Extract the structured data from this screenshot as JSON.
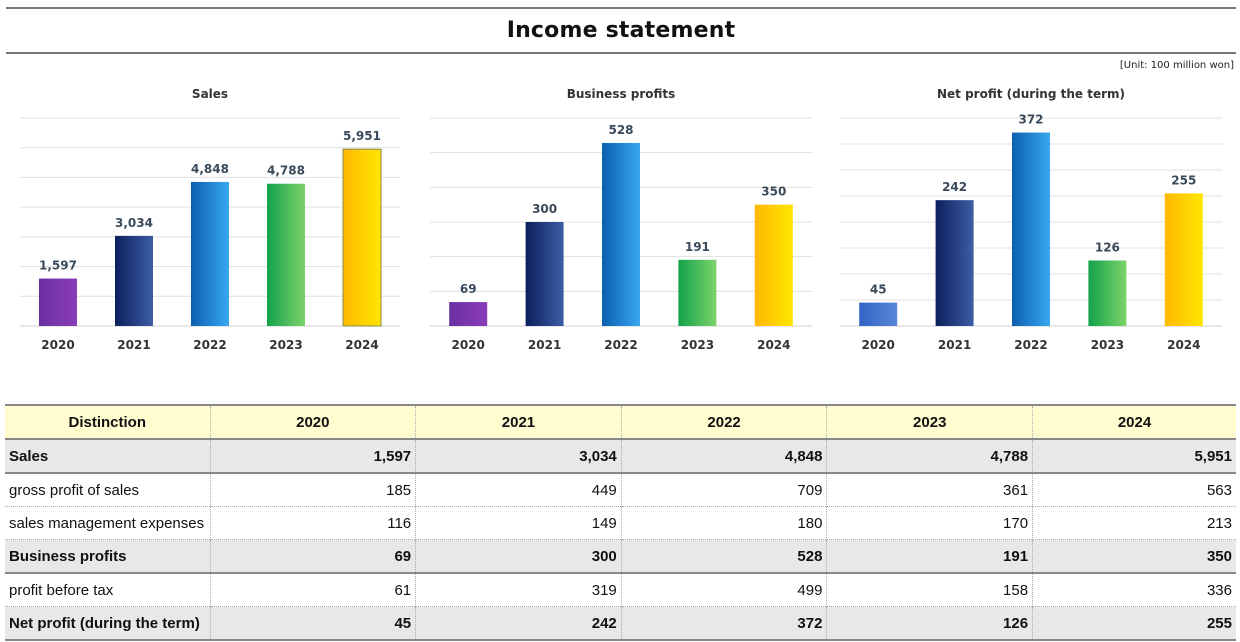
{
  "page": {
    "title": "Income statement",
    "unit": "[Unit: 100 million won]"
  },
  "colors": {
    "2020": [
      "#6b2fa3",
      "#8a3db8"
    ],
    "2020_alt": [
      "#2f63c6",
      "#5a86d6"
    ],
    "2021": [
      "#0c1f5c",
      "#3d5ea6"
    ],
    "2022": [
      "#0b5fb0",
      "#38a8f0"
    ],
    "2023": [
      "#12a24b",
      "#7dd36a"
    ],
    "2024": [
      "#ffb800",
      "#ffe600"
    ]
  },
  "chart_data": [
    {
      "type": "bar",
      "title": "Sales",
      "categories": [
        "2020",
        "2021",
        "2022",
        "2023",
        "2024"
      ],
      "values": [
        1597,
        3034,
        4848,
        4788,
        5951
      ],
      "value_labels": [
        "1,597",
        "3,034",
        "4,848",
        "4,788",
        "5,951"
      ],
      "ylim": [
        0,
        7000
      ],
      "grid": true
    },
    {
      "type": "bar",
      "title": "Business profits",
      "categories": [
        "2020",
        "2021",
        "2022",
        "2023",
        "2024"
      ],
      "values": [
        69,
        300,
        528,
        191,
        350
      ],
      "value_labels": [
        "69",
        "300",
        "528",
        "191",
        "350"
      ],
      "ylim": [
        0,
        600
      ],
      "grid": true
    },
    {
      "type": "bar",
      "title": "Net profit (during the term)",
      "categories": [
        "2020",
        "2021",
        "2022",
        "2023",
        "2024"
      ],
      "values": [
        45,
        242,
        372,
        126,
        255
      ],
      "value_labels": [
        "45",
        "242",
        "372",
        "126",
        "255"
      ],
      "ylim": [
        0,
        400
      ],
      "grid": true
    }
  ],
  "table": {
    "headers": [
      "Distinction",
      "2020",
      "2021",
      "2022",
      "2023",
      "2024"
    ],
    "rows": [
      {
        "label": "Sales",
        "bold": true,
        "cells": [
          "1,597",
          "3,034",
          "4,848",
          "4,788",
          "5,951"
        ]
      },
      {
        "label": "gross profit of sales",
        "bold": false,
        "cells": [
          "185",
          "449",
          "709",
          "361",
          "563"
        ]
      },
      {
        "label": "sales management expenses",
        "bold": false,
        "cells": [
          "116",
          "149",
          "180",
          "170",
          "213"
        ]
      },
      {
        "label": "Business profits",
        "bold": true,
        "cells": [
          "69",
          "300",
          "528",
          "191",
          "350"
        ]
      },
      {
        "label": "profit before tax",
        "bold": false,
        "cells": [
          "61",
          "319",
          "499",
          "158",
          "336"
        ]
      },
      {
        "label": "Net profit (during the term)",
        "bold": true,
        "cells": [
          "45",
          "242",
          "372",
          "126",
          "255"
        ]
      }
    ]
  }
}
